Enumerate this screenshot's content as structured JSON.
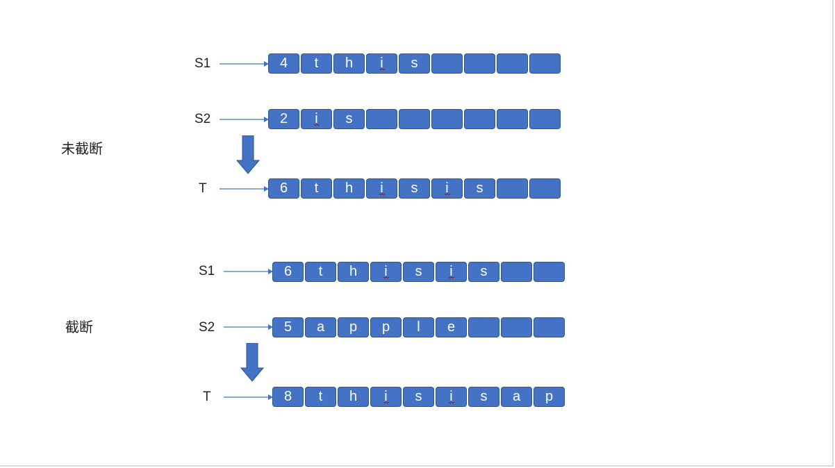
{
  "sections": [
    {
      "label": "未截断",
      "rows": [
        {
          "name": "S1",
          "cells": [
            "4",
            "t",
            "h",
            "i",
            "s",
            "",
            "",
            "",
            ""
          ],
          "underline": [
            3
          ]
        },
        {
          "name": "S2",
          "cells": [
            "2",
            "i",
            "s",
            "",
            "",
            "",
            "",
            "",
            ""
          ],
          "underline": [
            1
          ]
        },
        {
          "name": "T",
          "cells": [
            "6",
            "t",
            "h",
            "i",
            "s",
            "i",
            "s",
            "",
            ""
          ],
          "underline": [
            3,
            5
          ]
        }
      ]
    },
    {
      "label": "截断",
      "rows": [
        {
          "name": "S1",
          "cells": [
            "6",
            "t",
            "h",
            "i",
            "s",
            "i",
            "s",
            "",
            ""
          ],
          "underline": [
            3,
            5
          ]
        },
        {
          "name": "S2",
          "cells": [
            "5",
            "a",
            "p",
            "p",
            "l",
            "e",
            "",
            "",
            ""
          ],
          "underline": []
        },
        {
          "name": "T",
          "cells": [
            "8",
            "t",
            "h",
            "i",
            "s",
            "i",
            "s",
            "a",
            "p"
          ],
          "underline": [
            3,
            5
          ]
        }
      ]
    }
  ],
  "colors": {
    "cell_fill": "#4472c4",
    "cell_border": "#2f528f",
    "cell_text": "#ffffff",
    "spellcheck_underline": "#c00000"
  }
}
